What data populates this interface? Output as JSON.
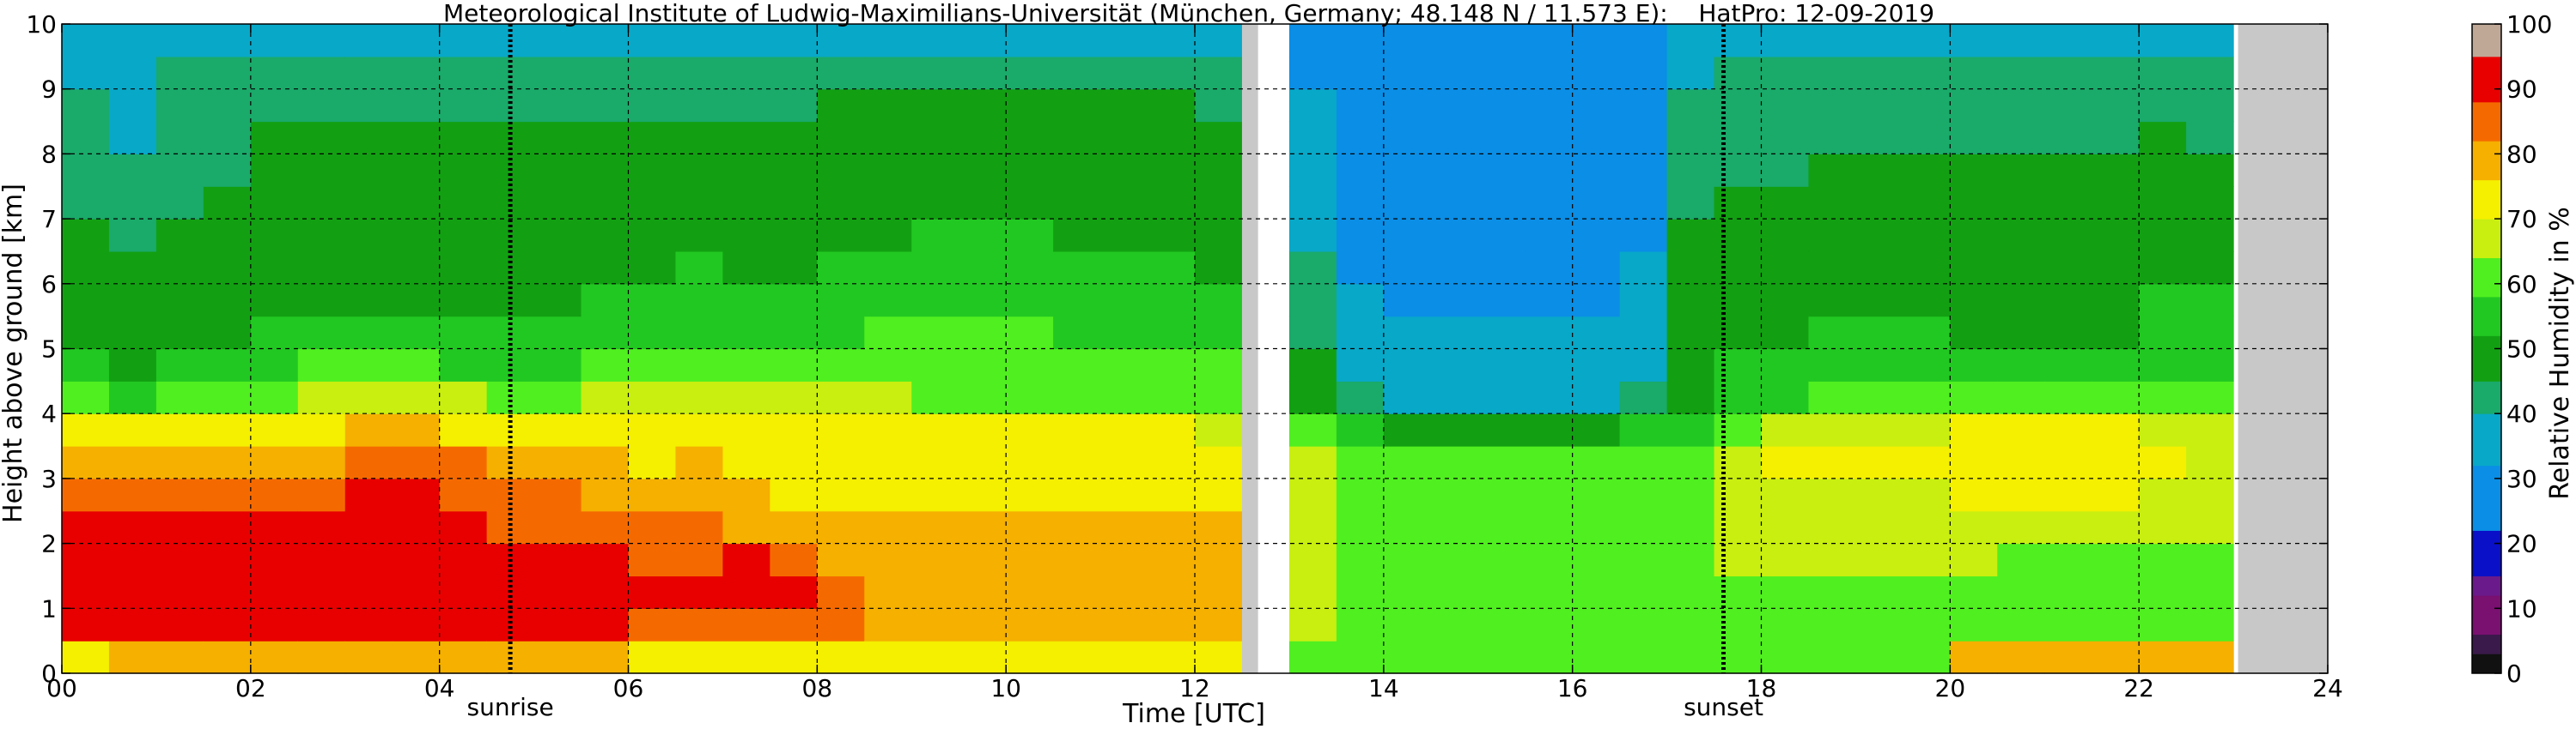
{
  "chart_data": {
    "type": "heatmap",
    "title": "Meteorological Institute of Ludwig-Maximilians-Universität (München, Germany; 48.148 N / 11.573 E):    HatPro: 12-09-2019",
    "xlabel": "Time [UTC]",
    "ylabel": "Height above ground [km]",
    "xlim": [
      0,
      24
    ],
    "ylim": [
      0,
      10
    ],
    "x_ticks": [
      "00",
      "02",
      "04",
      "06",
      "08",
      "10",
      "12",
      "14",
      "16",
      "18",
      "20",
      "22",
      "24"
    ],
    "y_ticks": [
      "0",
      "1",
      "2",
      "3",
      "4",
      "5",
      "6",
      "7",
      "8",
      "9",
      "10"
    ],
    "grid": true,
    "colorbar": {
      "label": "Relative Humidity in %",
      "range": [
        0,
        100
      ],
      "ticks": [
        "0",
        "10",
        "20",
        "30",
        "40",
        "50",
        "60",
        "70",
        "80",
        "90",
        "100"
      ],
      "colors": [
        {
          "from": 0,
          "to": 3,
          "color": "#111111"
        },
        {
          "from": 3,
          "to": 6,
          "color": "#3a1a4a"
        },
        {
          "from": 6,
          "to": 12,
          "color": "#7a1070"
        },
        {
          "from": 12,
          "to": 15,
          "color": "#6a1a8a"
        },
        {
          "from": 15,
          "to": 22,
          "color": "#0a10c8"
        },
        {
          "from": 22,
          "to": 32,
          "color": "#0a8ee6"
        },
        {
          "from": 32,
          "to": 40,
          "color": "#08a8c8"
        },
        {
          "from": 40,
          "to": 45,
          "color": "#1aaa6a"
        },
        {
          "from": 45,
          "to": 52,
          "color": "#12a012"
        },
        {
          "from": 52,
          "to": 58,
          "color": "#22c822"
        },
        {
          "from": 58,
          "to": 64,
          "color": "#50ef20"
        },
        {
          "from": 64,
          "to": 70,
          "color": "#c8ef10"
        },
        {
          "from": 70,
          "to": 76,
          "color": "#f5ef00"
        },
        {
          "from": 76,
          "to": 82,
          "color": "#f5b000"
        },
        {
          "from": 82,
          "to": 88,
          "color": "#f56a00"
        },
        {
          "from": 88,
          "to": 95,
          "color": "#e80000"
        },
        {
          "from": 95,
          "to": 100,
          "color": "#c0a896"
        }
      ]
    },
    "time_hours": [
      0,
      0.5,
      1,
      1.5,
      2,
      2.5,
      3,
      3.5,
      4,
      4.5,
      5,
      5.5,
      6,
      6.5,
      7,
      7.5,
      8,
      8.5,
      9,
      9.5,
      10,
      10.5,
      11,
      11.5,
      12,
      12.5,
      13,
      13.5,
      14,
      14.5,
      15,
      15.5,
      16,
      16.5,
      17,
      17.5,
      18,
      18.5,
      19,
      19.5,
      20,
      20.5,
      21,
      21.5,
      22,
      22.5
    ],
    "heights_km": [
      0.25,
      0.75,
      1.25,
      1.75,
      2.25,
      2.75,
      3.25,
      3.75,
      4.25,
      4.75,
      5.25,
      5.75,
      6.25,
      6.75,
      7.25,
      7.75,
      8.25,
      8.75,
      9.25,
      9.75
    ],
    "humidity_profiles": [
      [
        75,
        89,
        91,
        91,
        88,
        83,
        79,
        70,
        58,
        52,
        50,
        48,
        47,
        47,
        42,
        40,
        40,
        40,
        38,
        38
      ],
      [
        76,
        90,
        92,
        92,
        88,
        84,
        78,
        70,
        57,
        50,
        48,
        47,
        45,
        43,
        40,
        40,
        38,
        38,
        36,
        36
      ],
      [
        76,
        89,
        91,
        92,
        89,
        84,
        80,
        72,
        60,
        53,
        50,
        48,
        47,
        46,
        44,
        43,
        42,
        41,
        40,
        36
      ],
      [
        76,
        89,
        91,
        91,
        88,
        84,
        80,
        72,
        62,
        55,
        50,
        48,
        47,
        46,
        45,
        44,
        43,
        42,
        40,
        37
      ],
      [
        77,
        90,
        91,
        91,
        89,
        84,
        80,
        73,
        63,
        56,
        52,
        50,
        49,
        48,
        47,
        46,
        45,
        44,
        42,
        38
      ],
      [
        77,
        90,
        92,
        92,
        90,
        86,
        81,
        74,
        66,
        58,
        52,
        50,
        49,
        48,
        47,
        46,
        45,
        44,
        42,
        38
      ],
      [
        77,
        91,
        93,
        93,
        91,
        88,
        84,
        76,
        68,
        60,
        53,
        50,
        49,
        48,
        47,
        46,
        45,
        44,
        42,
        38
      ],
      [
        77,
        91,
        93,
        93,
        91,
        88,
        84,
        76,
        66,
        58,
        52,
        50,
        49,
        48,
        47,
        46,
        45,
        44,
        42,
        38
      ],
      [
        77,
        90,
        92,
        92,
        90,
        86,
        82,
        74,
        64,
        56,
        52,
        50,
        49,
        48,
        47,
        46,
        45,
        44,
        42,
        38
      ],
      [
        76,
        89,
        91,
        90,
        87,
        83,
        79,
        72,
        62,
        56,
        52,
        50,
        49,
        48,
        47,
        46,
        45,
        44,
        42,
        38
      ],
      [
        76,
        89,
        91,
        90,
        86,
        82,
        78,
        72,
        63,
        57,
        53,
        51,
        50,
        48,
        47,
        46,
        45,
        44,
        42,
        38
      ],
      [
        76,
        88,
        90,
        88,
        84,
        80,
        76,
        72,
        64,
        58,
        54,
        52,
        50,
        48,
        47,
        46,
        45,
        44,
        42,
        38
      ],
      [
        75,
        86,
        88,
        86,
        82,
        78,
        75,
        72,
        64,
        58,
        55,
        53,
        51,
        49,
        47,
        46,
        45,
        44,
        42,
        38
      ],
      [
        75,
        86,
        89,
        87,
        82,
        78,
        76,
        72,
        64,
        59,
        56,
        54,
        52,
        49,
        47,
        46,
        45,
        44,
        42,
        38
      ],
      [
        75,
        87,
        90,
        88,
        80,
        76,
        75,
        72,
        64,
        58,
        55,
        53,
        51,
        48,
        47,
        46,
        45,
        44,
        42,
        38
      ],
      [
        75,
        87,
        89,
        86,
        78,
        75,
        74,
        71,
        64,
        58,
        55,
        52,
        50,
        48,
        47,
        46,
        45,
        44,
        42,
        38
      ],
      [
        72,
        82,
        84,
        80,
        76,
        74,
        74,
        70,
        64,
        60,
        57,
        55,
        52,
        50,
        48,
        47,
        46,
        45,
        43,
        39
      ],
      [
        72,
        80,
        80,
        78,
        76,
        74,
        74,
        70,
        64,
        60,
        58,
        56,
        53,
        51,
        49,
        48,
        47,
        45,
        43,
        39
      ],
      [
        72,
        80,
        80,
        78,
        76,
        74,
        73,
        70,
        63,
        60,
        58,
        56,
        54,
        52,
        50,
        49,
        48,
        46,
        44,
        39
      ],
      [
        72,
        80,
        80,
        78,
        76,
        74,
        73,
        70,
        63,
        60,
        58,
        56,
        54,
        52,
        50,
        49,
        48,
        46,
        44,
        39
      ],
      [
        72,
        80,
        80,
        78,
        76,
        74,
        73,
        70,
        63,
        60,
        58,
        56,
        54,
        52,
        50,
        49,
        48,
        46,
        44,
        39
      ],
      [
        72,
        80,
        80,
        78,
        76,
        74,
        73,
        70,
        62,
        59,
        57,
        55,
        53,
        51,
        49,
        48,
        47,
        45,
        43,
        39
      ],
      [
        72,
        80,
        80,
        78,
        76,
        74,
        73,
        70,
        62,
        58,
        56,
        54,
        52,
        50,
        48,
        47,
        46,
        45,
        43,
        39
      ],
      [
        72,
        80,
        80,
        78,
        76,
        74,
        73,
        70,
        62,
        58,
        56,
        54,
        52,
        50,
        48,
        47,
        46,
        45,
        43,
        39
      ],
      [
        72,
        80,
        80,
        78,
        76,
        74,
        72,
        68,
        62,
        58,
        55,
        53,
        51,
        49,
        47,
        46,
        45,
        44,
        42,
        38
      ],
      [
        null,
        null,
        null,
        null,
        null,
        null,
        null,
        null,
        null,
        null,
        null,
        null,
        null,
        null,
        null,
        null,
        null,
        null,
        null,
        null
      ],
      [
        60,
        64,
        65,
        66,
        67,
        67,
        65,
        60,
        50,
        45,
        42,
        40,
        40,
        38,
        36,
        34,
        33,
        32,
        31,
        30
      ],
      [
        60,
        62,
        63,
        63,
        63,
        62,
        60,
        52,
        42,
        36,
        33,
        32,
        31,
        31,
        30,
        30,
        30,
        29,
        29,
        28
      ],
      [
        60,
        61,
        62,
        62,
        62,
        62,
        60,
        50,
        38,
        34,
        32,
        31,
        30,
        30,
        30,
        29,
        29,
        29,
        28,
        28
      ],
      [
        60,
        61,
        62,
        62,
        62,
        62,
        60,
        50,
        38,
        34,
        32,
        31,
        30,
        30,
        30,
        29,
        29,
        29,
        28,
        28
      ],
      [
        60,
        60,
        61,
        61,
        62,
        62,
        60,
        48,
        37,
        34,
        32,
        31,
        30,
        30,
        30,
        29,
        29,
        29,
        28,
        28
      ],
      [
        60,
        60,
        61,
        61,
        62,
        62,
        60,
        48,
        37,
        34,
        32,
        31,
        30,
        30,
        30,
        29,
        29,
        29,
        28,
        28
      ],
      [
        60,
        60,
        61,
        61,
        62,
        62,
        60,
        48,
        37,
        34,
        32,
        31,
        30,
        30,
        30,
        29,
        29,
        29,
        28,
        28
      ],
      [
        60,
        61,
        61,
        62,
        62,
        62,
        60,
        52,
        42,
        38,
        35,
        33,
        32,
        31,
        30,
        30,
        30,
        29,
        29,
        28
      ],
      [
        60,
        61,
        62,
        62,
        62,
        62,
        60,
        56,
        50,
        48,
        47,
        46,
        46,
        45,
        44,
        42,
        41,
        40,
        38,
        36
      ],
      [
        60,
        62,
        63,
        64,
        65,
        66,
        67,
        62,
        54,
        52,
        50,
        48,
        47,
        46,
        45,
        44,
        42,
        41,
        40,
        38
      ],
      [
        60,
        62,
        63,
        64,
        66,
        68,
        70,
        66,
        57,
        54,
        51,
        48,
        47,
        46,
        45,
        44,
        43,
        42,
        40,
        38
      ],
      [
        60,
        62,
        63,
        64,
        66,
        68,
        70,
        68,
        58,
        55,
        52,
        49,
        48,
        47,
        46,
        45,
        44,
        42,
        40,
        38
      ],
      [
        60,
        62,
        63,
        64,
        66,
        68,
        70,
        68,
        58,
        55,
        52,
        49,
        48,
        47,
        46,
        45,
        44,
        42,
        40,
        38
      ],
      [
        60,
        62,
        63,
        64,
        66,
        68,
        70,
        68,
        58,
        55,
        52,
        49,
        48,
        47,
        46,
        45,
        44,
        42,
        40,
        38
      ],
      [
        78,
        60,
        62,
        64,
        67,
        70,
        72,
        70,
        60,
        55,
        51,
        49,
        48,
        47,
        46,
        45,
        44,
        42,
        40,
        38
      ],
      [
        80,
        60,
        61,
        63,
        67,
        70,
        72,
        70,
        60,
        55,
        51,
        49,
        48,
        47,
        46,
        45,
        44,
        42,
        40,
        38
      ],
      [
        80,
        60,
        61,
        63,
        67,
        70,
        73,
        70,
        60,
        55,
        51,
        49,
        48,
        47,
        46,
        45,
        44,
        42,
        40,
        38
      ],
      [
        80,
        60,
        61,
        63,
        67,
        70,
        72,
        70,
        60,
        55,
        51,
        49,
        48,
        47,
        46,
        45,
        44,
        42,
        40,
        38
      ],
      [
        80,
        60,
        61,
        63,
        66,
        68,
        70,
        68,
        60,
        56,
        54,
        52,
        51,
        50,
        49,
        47,
        45,
        43,
        41,
        39
      ],
      [
        80,
        60,
        60,
        62,
        64,
        66,
        66,
        64,
        58,
        56,
        54,
        52,
        51,
        50,
        48,
        46,
        44,
        42,
        40,
        38
      ]
    ],
    "no_data_ranges_hours": [
      [
        12.5,
        12.67
      ],
      [
        23.05,
        24
      ]
    ],
    "annotations": [
      {
        "text": "sunrise",
        "x_hours": 4.75
      },
      {
        "text": "sunset",
        "x_hours": 17.6
      }
    ],
    "no_data_color": "#c8c8c8"
  }
}
